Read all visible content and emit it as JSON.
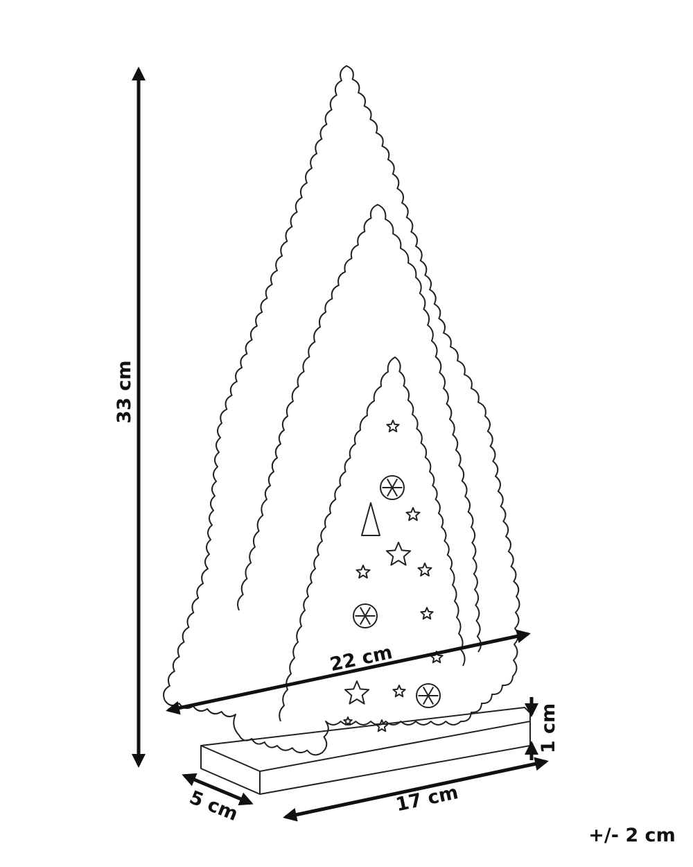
{
  "dimensions": {
    "height": "33 cm",
    "width": "22 cm",
    "base_height": "1 cm",
    "base_depth": "5 cm",
    "base_length": "17 cm",
    "tolerance": "+/- 2 cm"
  }
}
